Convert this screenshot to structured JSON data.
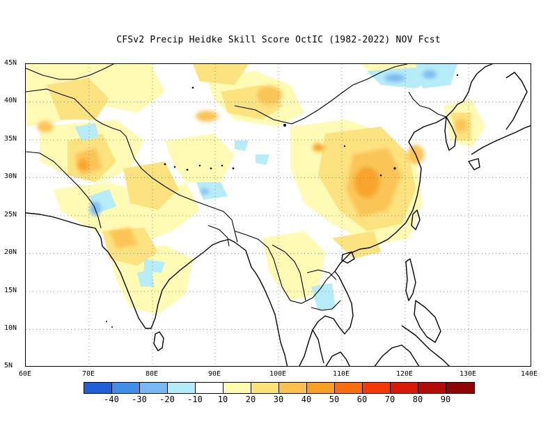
{
  "title": "CFSv2 Precip Heidke Skill Score OctIC (1982-2022) NOV Fcst",
  "axes": {
    "lat_labels": [
      "45N",
      "40N",
      "35N",
      "30N",
      "25N",
      "20N",
      "15N",
      "10N",
      "5N"
    ],
    "lon_labels": [
      "60E",
      "70E",
      "80E",
      "90E",
      "100E",
      "110E",
      "120E",
      "130E",
      "140E"
    ]
  },
  "colorbar": {
    "colors": [
      "#1f5fd6",
      "#3f8fe8",
      "#79b9f2",
      "#b3ecf7",
      "#ffffff",
      "#fffbb0",
      "#fde27a",
      "#fbc14e",
      "#f9a022",
      "#f76d10",
      "#f33a08",
      "#d81a08",
      "#b00c08",
      "#8c0606"
    ],
    "labels": [
      "-40",
      "-30",
      "-20",
      "-10",
      "10",
      "20",
      "30",
      "40",
      "50",
      "60",
      "70",
      "80",
      "90"
    ]
  },
  "map_features": {
    "region": "South and East Asia",
    "lon_range": [
      60,
      140
    ],
    "lat_range": [
      5,
      45
    ],
    "gridlines": "dotted"
  }
}
